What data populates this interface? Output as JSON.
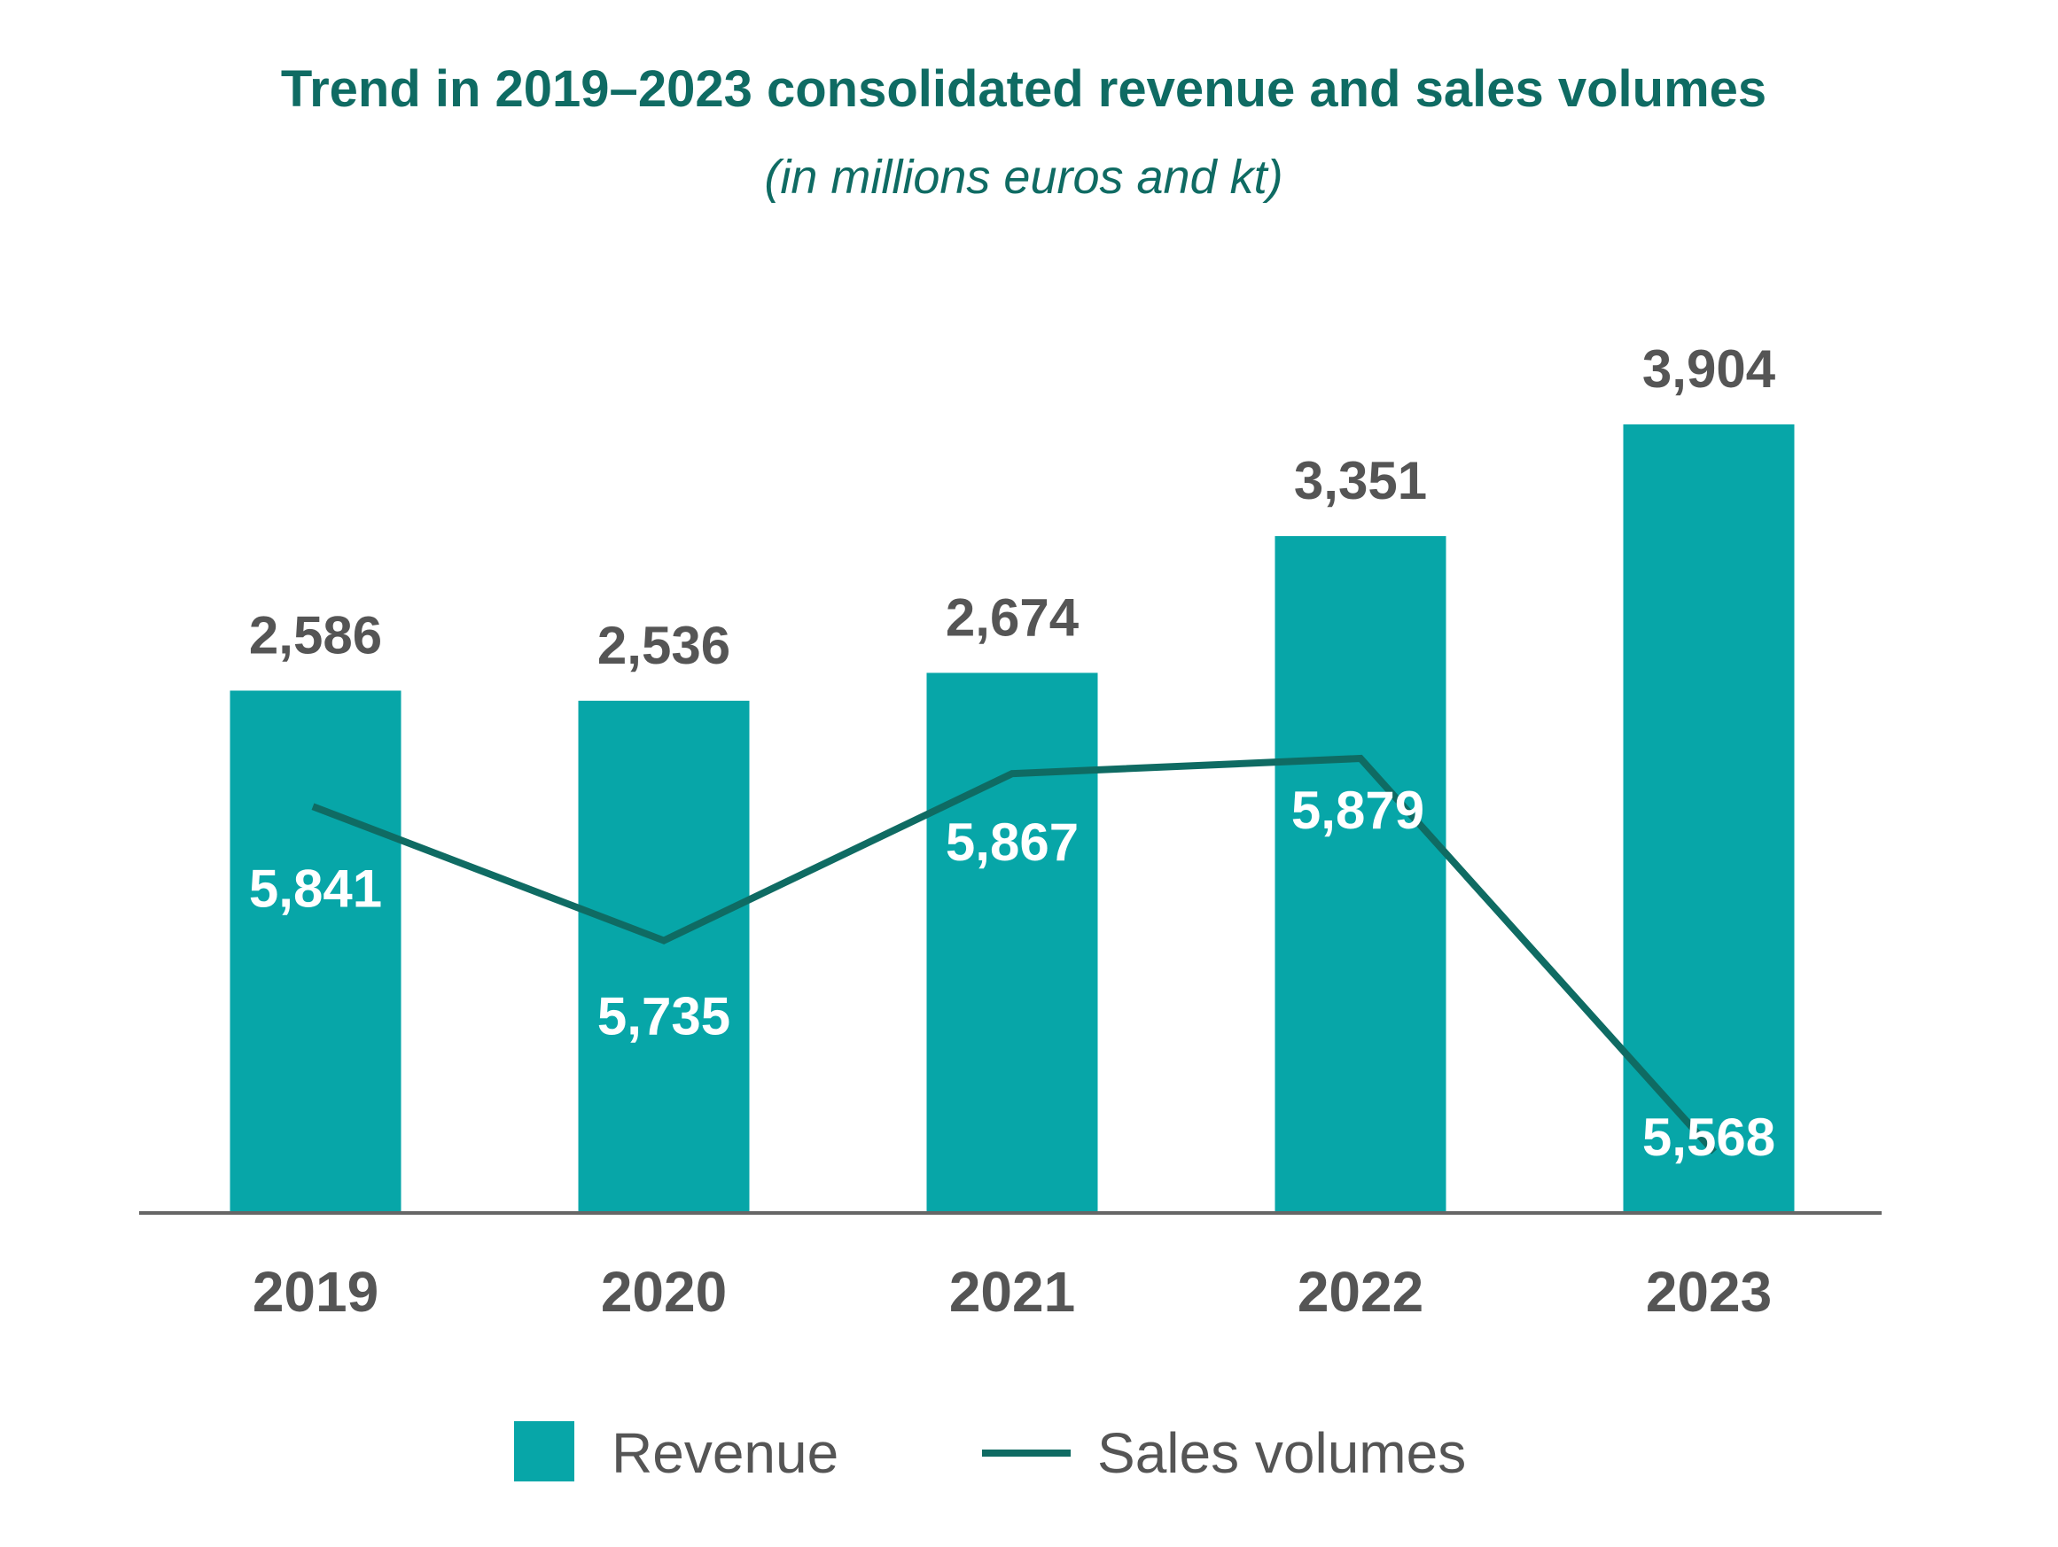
{
  "colors": {
    "title": "#0f6b63",
    "bar": "#07a6a8",
    "line": "#0f6b63",
    "axis": "#666666",
    "value_text": "#555555",
    "inner_text": "#ffffff"
  },
  "chart_data": {
    "type": "bar",
    "title": "Trend in 2019–2023 consolidated revenue and sales volumes",
    "subtitle": "(in millions euros and kt)",
    "categories": [
      "2019",
      "2020",
      "2021",
      "2022",
      "2023"
    ],
    "series": [
      {
        "name": "Revenue",
        "type": "bar",
        "values": [
          2586,
          2536,
          2674,
          3351,
          3904
        ],
        "labels": [
          "2,586",
          "2,536",
          "2,674",
          "3,351",
          "3,904"
        ]
      },
      {
        "name": "Sales volumes",
        "type": "line",
        "values": [
          5841,
          5735,
          5867,
          5879,
          5568
        ],
        "labels": [
          "5,841",
          "5,735",
          "5,867",
          "5,879",
          "5,568"
        ]
      }
    ],
    "legend_position": "bottom",
    "grid": false,
    "revenue_axis_range": [
      0,
      3904
    ],
    "volume_axis_range": [
      5500,
      5950
    ]
  }
}
